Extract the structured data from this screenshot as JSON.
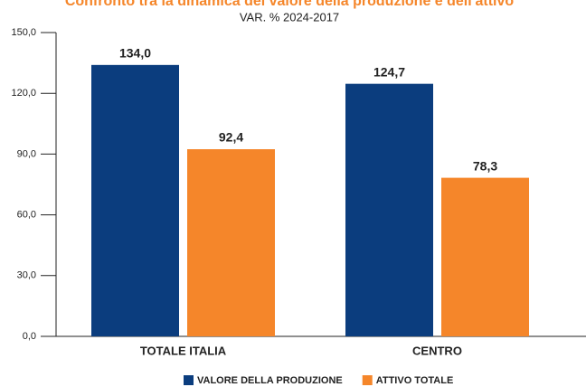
{
  "chart_data": {
    "type": "bar",
    "title": "Confronto tra la dinamica del valore della produzione e dell'attivo",
    "subtitle": "VAR. % 2024-2017",
    "categories": [
      "TOTALE ITALIA",
      "CENTRO"
    ],
    "series": [
      {
        "name": "VALORE DELLA PRODUZIONE",
        "color": "#0b3d7e",
        "values": [
          134.0,
          124.7
        ],
        "value_labels": [
          "134,0",
          "124,7"
        ]
      },
      {
        "name": "ATTIVO TOTALE",
        "color": "#f5862a",
        "values": [
          92.4,
          78.3
        ],
        "value_labels": [
          "92,4",
          "78,3"
        ]
      }
    ],
    "ylim": [
      0,
      150
    ],
    "yticks": [
      {
        "value": 0,
        "label": "0,0"
      },
      {
        "value": 30,
        "label": "30,0"
      },
      {
        "value": 60,
        "label": "60,0"
      },
      {
        "value": 90,
        "label": "90,0"
      },
      {
        "value": 120,
        "label": "120,0"
      },
      {
        "value": 150,
        "label": "150,0"
      }
    ],
    "legend": "bottom"
  }
}
